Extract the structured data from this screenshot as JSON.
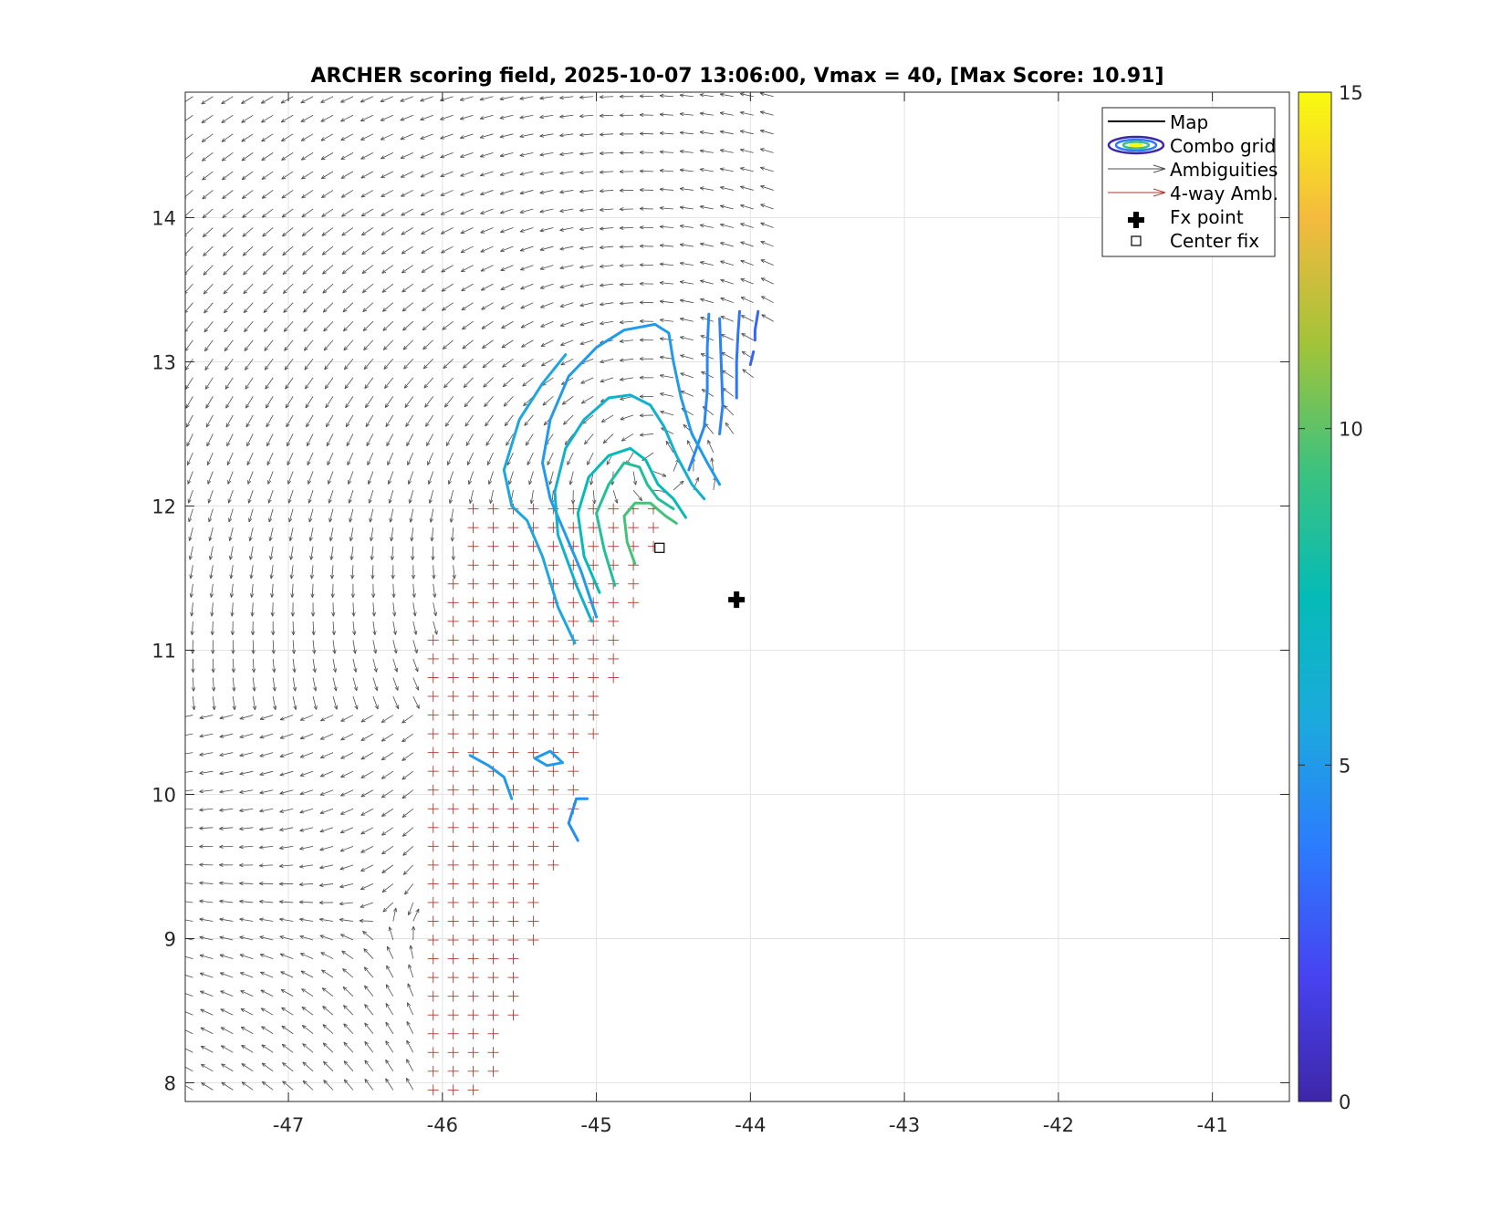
{
  "chart_data": {
    "type": "contour",
    "title": "ARCHER scoring field, 2025-10-07 13:06:00, Vmax = 40, [Max Score: 10.91]",
    "xlabel": "",
    "ylabel": "",
    "xlim": [
      -47.67,
      -40.5
    ],
    "ylim": [
      7.87,
      14.87
    ],
    "xticks": [
      -47,
      -46,
      -45,
      -44,
      -43,
      -42,
      -41
    ],
    "yticks": [
      8,
      9,
      10,
      11,
      12,
      13,
      14
    ],
    "grid": true,
    "colorbar": {
      "range": [
        0,
        15
      ],
      "ticks": [
        0,
        5,
        10,
        15
      ],
      "colormap": "parula",
      "colors": [
        "#3e26a8",
        "#4743f1",
        "#2c7bfe",
        "#1ca9de",
        "#05bbb7",
        "#3cc27f",
        "#a2c339",
        "#f4ba3e",
        "#f9fb0e"
      ]
    },
    "legend": {
      "position": "top-right",
      "entries": [
        {
          "label": "Map",
          "style": "line",
          "color": "#000000"
        },
        {
          "label": "Combo grid",
          "style": "contour",
          "color": "#3e26a8"
        },
        {
          "label": "Ambiguities",
          "style": "arrow",
          "color": "#4d4d4d"
        },
        {
          "label": "4-way Amb.",
          "style": "arrow",
          "color": "#b03a2e"
        },
        {
          "label": "Fx point",
          "style": "plus-marker",
          "color": "#000000"
        },
        {
          "label": "Center fix",
          "style": "square-marker",
          "color": "#000000"
        }
      ]
    },
    "fx_point": {
      "x": -44.09,
      "y": 11.35
    },
    "center_fix": {
      "x": -44.59,
      "y": 11.71
    },
    "max_score": 10.91,
    "vmax": 40,
    "contours": [
      {
        "level": 3.0,
        "points": [
          [
            -43.95,
            13.35
          ],
          [
            -43.97,
            13.22
          ],
          [
            -43.97,
            13.15
          ]
        ]
      },
      {
        "level": 3.0,
        "points": [
          [
            -43.98,
            13.07
          ],
          [
            -44.0,
            12.98
          ]
        ]
      },
      {
        "level": 3.5,
        "points": [
          [
            -44.07,
            13.35
          ],
          [
            -44.08,
            13.2
          ],
          [
            -44.09,
            13.0
          ],
          [
            -44.09,
            12.75
          ]
        ]
      },
      {
        "level": 4.0,
        "points": [
          [
            -44.2,
            13.3
          ],
          [
            -44.19,
            13.0
          ],
          [
            -44.18,
            12.7
          ],
          [
            -44.2,
            12.5
          ]
        ]
      },
      {
        "level": 4.3,
        "points": [
          [
            -44.27,
            13.33
          ],
          [
            -44.28,
            13.1
          ],
          [
            -44.28,
            12.8
          ],
          [
            -44.3,
            12.55
          ],
          [
            -44.4,
            12.25
          ]
        ]
      },
      {
        "level": 5.0,
        "points": [
          [
            -45.0,
            11.23
          ],
          [
            -45.1,
            11.55
          ],
          [
            -45.22,
            11.85
          ],
          [
            -45.3,
            12.05
          ],
          [
            -45.35,
            12.3
          ],
          [
            -45.3,
            12.6
          ],
          [
            -45.18,
            12.9
          ],
          [
            -45.0,
            13.1
          ],
          [
            -44.82,
            13.22
          ],
          [
            -44.62,
            13.26
          ],
          [
            -44.53,
            13.2
          ],
          [
            -44.5,
            13.0
          ],
          [
            -44.45,
            12.75
          ],
          [
            -44.38,
            12.5
          ],
          [
            -44.28,
            12.3
          ],
          [
            -44.2,
            12.15
          ]
        ]
      },
      {
        "level": 5.0,
        "points": [
          [
            -45.55,
            9.97
          ],
          [
            -45.6,
            10.12
          ],
          [
            -45.7,
            10.2
          ],
          [
            -45.82,
            10.27
          ]
        ]
      },
      {
        "level": 5.0,
        "points": [
          [
            -45.4,
            10.25
          ],
          [
            -45.32,
            10.2
          ],
          [
            -45.22,
            10.22
          ],
          [
            -45.3,
            10.3
          ],
          [
            -45.4,
            10.25
          ]
        ]
      },
      {
        "level": 4.5,
        "points": [
          [
            -45.12,
            9.68
          ],
          [
            -45.18,
            9.8
          ],
          [
            -45.13,
            9.97
          ],
          [
            -45.06,
            9.97
          ]
        ]
      },
      {
        "level": 5.5,
        "points": [
          [
            -45.14,
            11.05
          ],
          [
            -45.25,
            11.3
          ],
          [
            -45.35,
            11.65
          ],
          [
            -45.45,
            11.9
          ],
          [
            -45.55,
            12.0
          ],
          [
            -45.6,
            12.25
          ],
          [
            -45.5,
            12.6
          ],
          [
            -45.35,
            12.85
          ],
          [
            -45.2,
            13.05
          ]
        ]
      },
      {
        "level": 6.5,
        "points": [
          [
            -45.03,
            11.2
          ],
          [
            -45.13,
            11.45
          ],
          [
            -45.25,
            11.8
          ],
          [
            -45.27,
            12.1
          ],
          [
            -45.2,
            12.4
          ],
          [
            -45.08,
            12.6
          ],
          [
            -44.92,
            12.75
          ],
          [
            -44.78,
            12.77
          ],
          [
            -44.65,
            12.7
          ],
          [
            -44.56,
            12.55
          ],
          [
            -44.48,
            12.35
          ],
          [
            -44.38,
            12.15
          ],
          [
            -44.3,
            12.05
          ]
        ]
      },
      {
        "level": 7.5,
        "points": [
          [
            -44.98,
            11.4
          ],
          [
            -45.08,
            11.65
          ],
          [
            -45.12,
            11.95
          ],
          [
            -45.05,
            12.2
          ],
          [
            -44.92,
            12.35
          ],
          [
            -44.78,
            12.4
          ],
          [
            -44.68,
            12.32
          ],
          [
            -44.6,
            12.15
          ],
          [
            -44.5,
            12.05
          ],
          [
            -44.42,
            11.92
          ]
        ]
      },
      {
        "level": 8.5,
        "points": [
          [
            -44.88,
            11.45
          ],
          [
            -44.95,
            11.7
          ],
          [
            -45.0,
            11.95
          ],
          [
            -44.92,
            12.15
          ],
          [
            -44.82,
            12.3
          ],
          [
            -44.72,
            12.27
          ],
          [
            -44.67,
            12.15
          ],
          [
            -44.6,
            12.05
          ],
          [
            -44.5,
            11.98
          ]
        ]
      },
      {
        "level": 9.5,
        "points": [
          [
            -44.75,
            11.6
          ],
          [
            -44.8,
            11.75
          ],
          [
            -44.82,
            11.93
          ],
          [
            -44.75,
            12.02
          ],
          [
            -44.65,
            12.02
          ],
          [
            -44.55,
            11.93
          ],
          [
            -44.48,
            11.88
          ]
        ]
      }
    ]
  }
}
